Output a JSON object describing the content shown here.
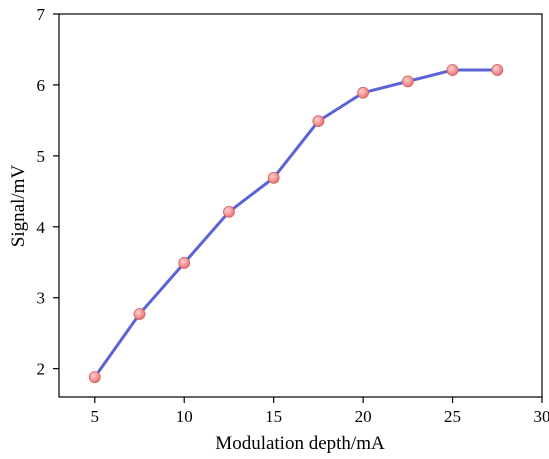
{
  "chart_data": {
    "type": "line",
    "xlabel": "Modulation depth/mA",
    "ylabel": "Signal/mV",
    "xlim": [
      3,
      30
    ],
    "ylim": [
      1.6,
      7
    ],
    "xticks": [
      "5",
      "10",
      "15",
      "20",
      "25",
      "30"
    ],
    "yticks": [
      "2",
      "3",
      "4",
      "5",
      "6",
      "7"
    ],
    "grid": false,
    "legend": "none",
    "series": [
      {
        "x": [
          5,
          7.5,
          10,
          12.5,
          15,
          17.5,
          20,
          22.5,
          25,
          27.5
        ],
        "values": [
          1.88,
          2.77,
          3.49,
          4.21,
          4.69,
          5.49,
          5.89,
          6.05,
          6.21,
          6.21
        ],
        "line_color": "#5b63d8",
        "marker_color": "#e86d6d",
        "marker_highlight": "#ffd0d0"
      }
    ]
  }
}
